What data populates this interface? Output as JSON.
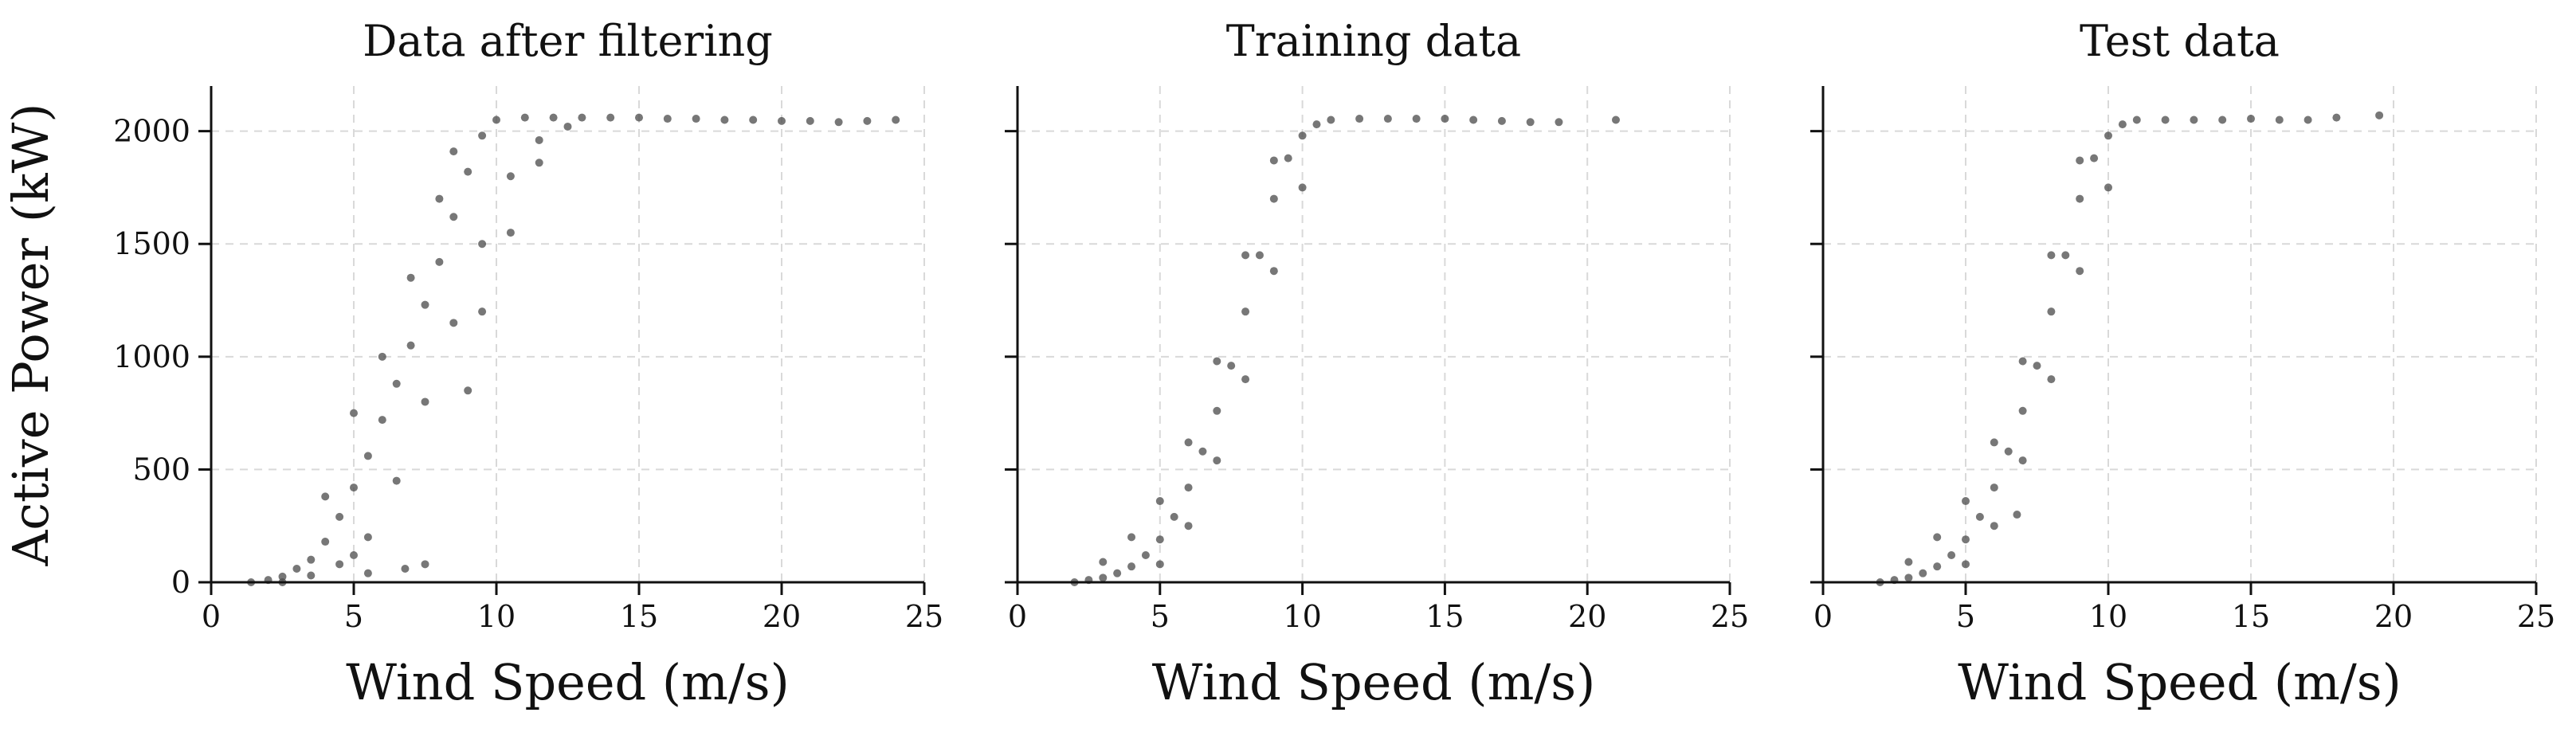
{
  "figure": {
    "ylabel": "Active Power (kW)",
    "point_color": "#4a4a4a",
    "grid_color": "#d9d9d9"
  },
  "chart_data": [
    {
      "type": "scatter",
      "title": "Data after filtering",
      "xlabel": "Wind Speed (m/s)",
      "ylabel": "Active Power (kW)",
      "xlim": [
        0,
        25
      ],
      "ylim": [
        0,
        2200
      ],
      "xticks": [
        "0",
        "5",
        "10",
        "15",
        "20",
        "25"
      ],
      "yticks": [
        "0",
        "500",
        "1000",
        "1500",
        "2000"
      ],
      "grid": true,
      "points": [
        [
          1.4,
          0
        ],
        [
          2.0,
          10
        ],
        [
          2.5,
          25
        ],
        [
          3.0,
          60
        ],
        [
          3.5,
          100
        ],
        [
          4.0,
          180
        ],
        [
          4.5,
          290
        ],
        [
          5.0,
          420
        ],
        [
          5.5,
          560
        ],
        [
          6.0,
          720
        ],
        [
          6.5,
          880
        ],
        [
          7.0,
          1050
        ],
        [
          7.5,
          1230
        ],
        [
          8.0,
          1420
        ],
        [
          8.5,
          1620
        ],
        [
          9.0,
          1820
        ],
        [
          9.5,
          1980
        ],
        [
          10.0,
          2050
        ],
        [
          11.0,
          2060
        ],
        [
          12.0,
          2060
        ],
        [
          13.0,
          2060
        ],
        [
          14.0,
          2060
        ],
        [
          15.0,
          2060
        ],
        [
          16.0,
          2055
        ],
        [
          17.0,
          2055
        ],
        [
          18.0,
          2050
        ],
        [
          19.0,
          2050
        ],
        [
          20.0,
          2045
        ],
        [
          21.0,
          2045
        ],
        [
          22.0,
          2040
        ],
        [
          23.0,
          2045
        ],
        [
          24.0,
          2050
        ],
        [
          2.5,
          0
        ],
        [
          3.5,
          30
        ],
        [
          4.5,
          80
        ],
        [
          5.5,
          200
        ],
        [
          6.5,
          450
        ],
        [
          7.5,
          800
        ],
        [
          8.5,
          1150
        ],
        [
          9.5,
          1500
        ],
        [
          10.5,
          1800
        ],
        [
          11.5,
          1960
        ],
        [
          12.5,
          2020
        ],
        [
          4.0,
          380
        ],
        [
          5.0,
          750
        ],
        [
          6.0,
          1000
        ],
        [
          7.0,
          1350
        ],
        [
          8.0,
          1700
        ],
        [
          8.5,
          1910
        ],
        [
          6.8,
          60
        ],
        [
          7.5,
          80
        ],
        [
          5.5,
          40
        ],
        [
          5.0,
          120
        ],
        [
          9.0,
          850
        ],
        [
          9.5,
          1200
        ],
        [
          10.5,
          1550
        ],
        [
          11.5,
          1860
        ]
      ]
    },
    {
      "type": "scatter",
      "title": "Training data",
      "xlabel": "Wind Speed (m/s)",
      "xlim": [
        0,
        25
      ],
      "ylim": [
        0,
        2200
      ],
      "xticks": [
        "0",
        "5",
        "10",
        "15",
        "20",
        "25"
      ],
      "grid": true,
      "points": [
        [
          2.0,
          0
        ],
        [
          2.5,
          10
        ],
        [
          3.0,
          20
        ],
        [
          3.5,
          40
        ],
        [
          4.0,
          70
        ],
        [
          4.5,
          120
        ],
        [
          5.0,
          190
        ],
        [
          5.5,
          290
        ],
        [
          6.0,
          420
        ],
        [
          6.5,
          580
        ],
        [
          7.0,
          760
        ],
        [
          7.5,
          960
        ],
        [
          8.0,
          1200
        ],
        [
          8.5,
          1450
        ],
        [
          9.0,
          1700
        ],
        [
          9.5,
          1880
        ],
        [
          10.0,
          1980
        ],
        [
          10.5,
          2030
        ],
        [
          11.0,
          2050
        ],
        [
          12.0,
          2055
        ],
        [
          13.0,
          2055
        ],
        [
          14.0,
          2055
        ],
        [
          15.0,
          2055
        ],
        [
          16.0,
          2050
        ],
        [
          17.0,
          2045
        ],
        [
          18.0,
          2040
        ],
        [
          19.0,
          2040
        ],
        [
          21.0,
          2050
        ],
        [
          3.0,
          90
        ],
        [
          4.0,
          200
        ],
        [
          5.0,
          360
        ],
        [
          6.0,
          620
        ],
        [
          7.0,
          980
        ],
        [
          8.0,
          1450
        ],
        [
          9.0,
          1870
        ],
        [
          5.0,
          80
        ],
        [
          6.0,
          250
        ],
        [
          7.0,
          540
        ],
        [
          8.0,
          900
        ],
        [
          9.0,
          1380
        ],
        [
          10.0,
          1750
        ]
      ]
    },
    {
      "type": "scatter",
      "title": "Test data",
      "xlabel": "Wind Speed (m/s)",
      "xlim": [
        0,
        25
      ],
      "ylim": [
        0,
        2200
      ],
      "xticks": [
        "0",
        "5",
        "10",
        "15",
        "20",
        "25"
      ],
      "grid": true,
      "points": [
        [
          2.0,
          0
        ],
        [
          2.5,
          10
        ],
        [
          3.0,
          20
        ],
        [
          3.5,
          40
        ],
        [
          4.0,
          70
        ],
        [
          4.5,
          120
        ],
        [
          5.0,
          190
        ],
        [
          5.5,
          290
        ],
        [
          6.0,
          420
        ],
        [
          6.5,
          580
        ],
        [
          7.0,
          760
        ],
        [
          7.5,
          960
        ],
        [
          8.0,
          1200
        ],
        [
          8.5,
          1450
        ],
        [
          9.0,
          1700
        ],
        [
          9.5,
          1880
        ],
        [
          10.0,
          1980
        ],
        [
          10.5,
          2030
        ],
        [
          11.0,
          2050
        ],
        [
          12.0,
          2050
        ],
        [
          13.0,
          2050
        ],
        [
          14.0,
          2050
        ],
        [
          15.0,
          2055
        ],
        [
          16.0,
          2050
        ],
        [
          17.0,
          2050
        ],
        [
          18.0,
          2060
        ],
        [
          19.5,
          2070
        ],
        [
          3.0,
          90
        ],
        [
          4.0,
          200
        ],
        [
          5.0,
          360
        ],
        [
          6.0,
          620
        ],
        [
          7.0,
          980
        ],
        [
          8.0,
          1450
        ],
        [
          9.0,
          1870
        ],
        [
          5.0,
          80
        ],
        [
          6.0,
          250
        ],
        [
          7.0,
          540
        ],
        [
          8.0,
          900
        ],
        [
          9.0,
          1380
        ],
        [
          10.0,
          1750
        ],
        [
          6.8,
          300
        ]
      ]
    }
  ]
}
